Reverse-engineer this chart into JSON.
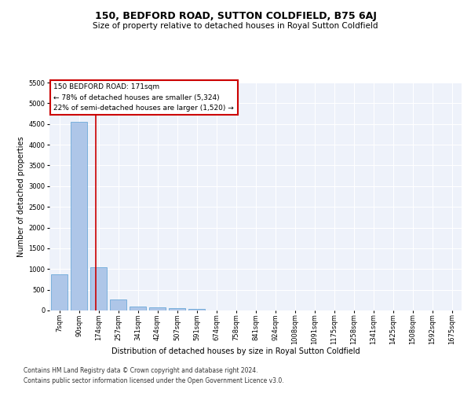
{
  "title": "150, BEDFORD ROAD, SUTTON COLDFIELD, B75 6AJ",
  "subtitle": "Size of property relative to detached houses in Royal Sutton Coldfield",
  "xlabel": "Distribution of detached houses by size in Royal Sutton Coldfield",
  "ylabel": "Number of detached properties",
  "categories": [
    "7sqm",
    "90sqm",
    "174sqm",
    "257sqm",
    "341sqm",
    "424sqm",
    "507sqm",
    "591sqm",
    "674sqm",
    "758sqm",
    "841sqm",
    "924sqm",
    "1008sqm",
    "1091sqm",
    "1175sqm",
    "1258sqm",
    "1341sqm",
    "1425sqm",
    "1508sqm",
    "1592sqm",
    "1675sqm"
  ],
  "bar_heights": [
    870,
    4550,
    1050,
    270,
    90,
    80,
    50,
    40,
    0,
    0,
    0,
    0,
    0,
    0,
    0,
    0,
    0,
    0,
    0,
    0,
    0
  ],
  "bar_color": "#aec6e8",
  "bar_edge_color": "#5a9fd4",
  "vline_x": 1.85,
  "vline_color": "#cc0000",
  "annotation_text": "150 BEDFORD ROAD: 171sqm\n← 78% of detached houses are smaller (5,324)\n22% of semi-detached houses are larger (1,520) →",
  "annotation_box_color": "#cc0000",
  "annotation_text_color": "#000000",
  "ylim": [
    0,
    5500
  ],
  "yticks": [
    0,
    500,
    1000,
    1500,
    2000,
    2500,
    3000,
    3500,
    4000,
    4500,
    5000,
    5500
  ],
  "background_color": "#eef2fa",
  "footer1": "Contains HM Land Registry data © Crown copyright and database right 2024.",
  "footer2": "Contains public sector information licensed under the Open Government Licence v3.0.",
  "title_fontsize": 9,
  "subtitle_fontsize": 7.5,
  "axis_label_fontsize": 7,
  "tick_fontsize": 6,
  "annotation_fontsize": 6.5,
  "footer_fontsize": 5.5
}
